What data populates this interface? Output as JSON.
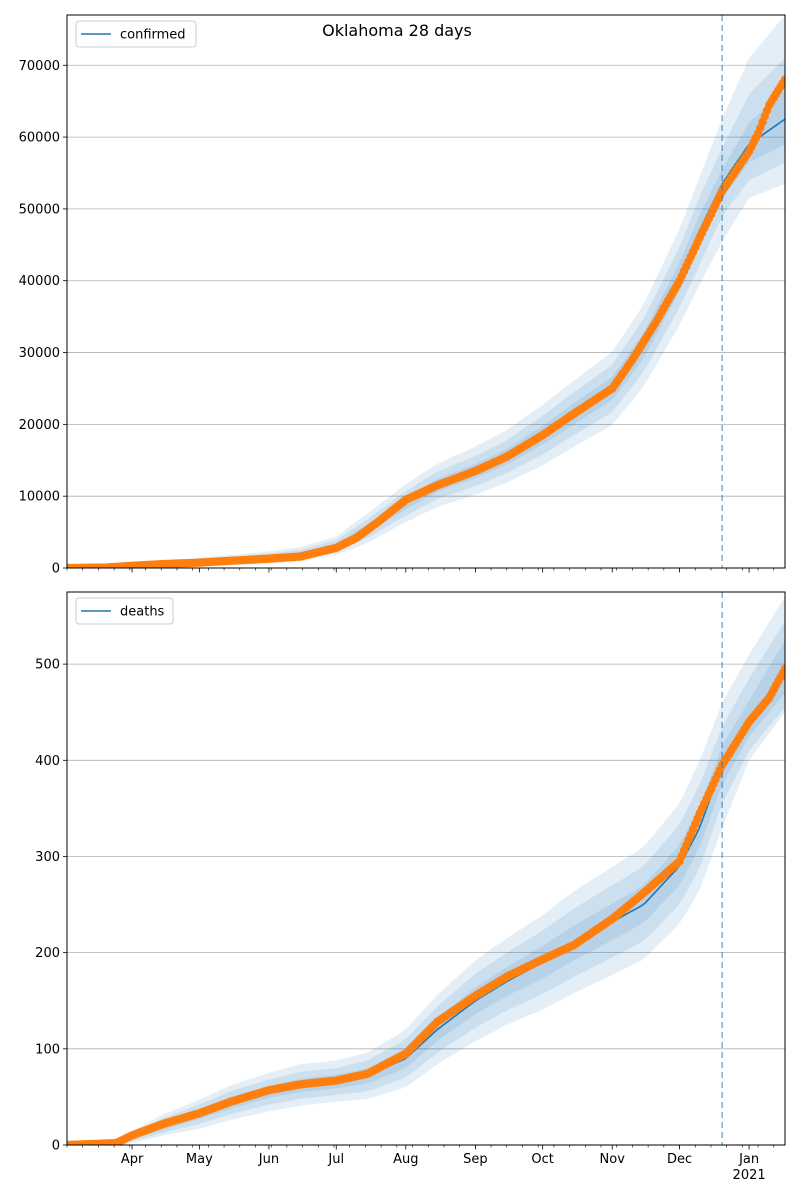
{
  "colors": {
    "model": "#1f77b4",
    "observed": "#ff7f0e",
    "band": "#1f77b4",
    "grid": "#b0b0b0",
    "forecast_line": "#1f77b4"
  },
  "chart_data": [
    {
      "type": "line",
      "title": "Oklahoma 28 days",
      "legend": {
        "entries": [
          "confirmed"
        ],
        "placement": "top-left"
      },
      "xlabel": "",
      "ylabel": "",
      "grid": "y",
      "x_range": [
        "2020-03-03",
        "2021-01-17"
      ],
      "ylim": [
        0,
        77000
      ],
      "yticks": [
        0,
        10000,
        20000,
        30000,
        40000,
        50000,
        60000,
        70000
      ],
      "ytick_labels": [
        "0",
        "10000",
        "20000",
        "30000",
        "40000",
        "50000",
        "60000",
        "70000"
      ],
      "forecast_start": "2020-12-20",
      "model": {
        "name": "confirmed",
        "x": [
          "2020-03-03",
          "2020-04-01",
          "2020-05-01",
          "2020-06-01",
          "2020-06-15",
          "2020-07-01",
          "2020-07-15",
          "2020-08-01",
          "2020-08-15",
          "2020-09-01",
          "2020-09-15",
          "2020-10-01",
          "2020-10-15",
          "2020-11-01",
          "2020-11-15",
          "2020-12-01",
          "2020-12-10",
          "2020-12-20",
          "2021-01-01",
          "2021-01-17"
        ],
        "y": [
          0,
          200,
          800,
          1400,
          1800,
          3000,
          5500,
          9000,
          11500,
          13500,
          15500,
          18500,
          21500,
          25000,
          31000,
          40500,
          47000,
          53500,
          59000,
          62500
        ],
        "bands": [
          {
            "lower": [
              0,
              150,
              600,
              1100,
              1500,
              2600,
              4900,
              8200,
              10600,
              12500,
              14400,
              17200,
              20000,
              23400,
              29200,
              38500,
              44800,
              51500,
              56500,
              59000
            ],
            "upper": [
              0,
              250,
              1000,
              1700,
              2100,
              3400,
              6100,
              9800,
              12400,
              14500,
              16600,
              19800,
              23000,
              26600,
              32800,
              42500,
              49200,
              55500,
              62000,
              66500
            ]
          },
          {
            "lower": [
              0,
              100,
              450,
              850,
              1200,
              2200,
              4200,
              7300,
              9600,
              11400,
              13200,
              15800,
              18500,
              21700,
              27300,
              36300,
              42300,
              49000,
              54000,
              56500
            ],
            "upper": [
              0,
              300,
              1200,
              2000,
              2500,
              3900,
              6800,
              10700,
              13400,
              15600,
              17800,
              21200,
              24500,
              28300,
              34700,
              44700,
              51700,
              58500,
              66000,
              71000
            ]
          },
          {
            "lower": [
              0,
              60,
              300,
              600,
              900,
              1800,
              3500,
              6400,
              8500,
              10200,
              11900,
              14300,
              16900,
              19900,
              25300,
              33800,
              39500,
              45500,
              51500,
              53500
            ],
            "upper": [
              0,
              350,
              1400,
              2300,
              2900,
              4400,
              7600,
              11700,
              14500,
              16900,
              19200,
              22700,
              26100,
              30100,
              36700,
              47200,
              54500,
              62500,
              71000,
              77000
            ]
          }
        ]
      },
      "observed": {
        "x": [
          "2020-03-03",
          "2020-03-20",
          "2020-04-01",
          "2020-04-15",
          "2020-05-01",
          "2020-05-15",
          "2020-06-01",
          "2020-06-15",
          "2020-07-01",
          "2020-07-10",
          "2020-07-20",
          "2020-08-01",
          "2020-08-15",
          "2020-09-01",
          "2020-09-15",
          "2020-10-01",
          "2020-10-15",
          "2020-11-01",
          "2020-11-10",
          "2020-11-20",
          "2020-12-01",
          "2020-12-10",
          "2020-12-20",
          "2021-01-01",
          "2021-01-05",
          "2021-01-10",
          "2021-01-17"
        ],
        "y": [
          0,
          60,
          300,
          550,
          750,
          1000,
          1300,
          1600,
          2800,
          4200,
          6500,
          9500,
          11500,
          13500,
          15500,
          18500,
          21500,
          25000,
          29000,
          34000,
          40000,
          46000,
          52500,
          58000,
          60500,
          64500,
          68000
        ]
      }
    },
    {
      "type": "line",
      "title": "",
      "legend": {
        "entries": [
          "deaths"
        ],
        "placement": "top-left"
      },
      "xlabel": "",
      "ylabel": "",
      "grid": "y",
      "x_range": [
        "2020-03-03",
        "2021-01-17"
      ],
      "ylim": [
        0,
        575
      ],
      "yticks": [
        0,
        100,
        200,
        300,
        400,
        500
      ],
      "ytick_labels": [
        "0",
        "100",
        "200",
        "300",
        "400",
        "500"
      ],
      "xticks": [
        "2020-04-01",
        "2020-05-01",
        "2020-06-01",
        "2020-07-01",
        "2020-08-01",
        "2020-09-01",
        "2020-10-01",
        "2020-11-01",
        "2020-12-01",
        "2021-01-01"
      ],
      "xtick_labels": [
        "Apr",
        "May",
        "Jun",
        "Jul",
        "Aug",
        "Sep",
        "Oct",
        "Nov",
        "Dec",
        "Jan"
      ],
      "xtick_sublabel": "2021",
      "forecast_start": "2020-12-20",
      "model": {
        "name": "deaths",
        "x": [
          "2020-03-03",
          "2020-03-25",
          "2020-04-01",
          "2020-04-15",
          "2020-05-01",
          "2020-05-15",
          "2020-06-01",
          "2020-06-15",
          "2020-07-01",
          "2020-07-15",
          "2020-08-01",
          "2020-08-15",
          "2020-09-01",
          "2020-09-15",
          "2020-10-01",
          "2020-10-15",
          "2020-11-01",
          "2020-11-15",
          "2020-12-01",
          "2020-12-10",
          "2020-12-20",
          "2021-01-01",
          "2021-01-17"
        ],
        "y": [
          0,
          2,
          8,
          20,
          32,
          44,
          55,
          62,
          66,
          72,
          90,
          120,
          150,
          170,
          190,
          210,
          232,
          250,
          290,
          330,
          395,
          440,
          495
        ],
        "bands": [
          {
            "lower": [
              0,
              1,
              6,
              16,
              27,
              38,
              49,
              55,
              59,
              64,
              80,
              108,
              136,
              155,
              173,
              192,
              213,
              231,
              270,
              310,
              375,
              425,
              470
            ],
            "upper": [
              0,
              3,
              10,
              24,
              37,
              50,
              61,
              69,
              73,
              80,
              100,
              132,
              164,
              185,
              207,
              228,
              251,
              270,
              312,
              352,
              415,
              462,
              525
            ]
          },
          {
            "lower": [
              0,
              1,
              4,
              13,
              22,
              32,
              42,
              48,
              52,
              56,
              70,
              96,
              122,
              140,
              157,
              175,
              195,
              212,
              250,
              288,
              355,
              410,
              455
            ],
            "upper": [
              0,
              4,
              12,
              28,
              42,
              56,
              68,
              76,
              80,
              88,
              110,
              144,
              178,
              200,
              223,
              246,
              270,
              290,
              333,
              375,
              435,
              485,
              545
            ]
          },
          {
            "lower": [
              0,
              0,
              2,
              10,
              17,
              26,
              35,
              41,
              45,
              48,
              60,
              84,
              108,
              125,
              141,
              158,
              177,
              193,
              230,
              265,
              330,
              400,
              450
            ],
            "upper": [
              0,
              5,
              14,
              32,
              47,
              62,
              75,
              84,
              88,
              96,
              120,
              156,
              192,
              215,
              239,
              264,
              289,
              310,
              355,
              400,
              460,
              510,
              570
            ]
          }
        ]
      },
      "observed": {
        "x": [
          "2020-03-03",
          "2020-03-25",
          "2020-04-01",
          "2020-04-15",
          "2020-05-01",
          "2020-05-15",
          "2020-06-01",
          "2020-06-15",
          "2020-07-01",
          "2020-07-15",
          "2020-08-01",
          "2020-08-15",
          "2020-09-01",
          "2020-09-15",
          "2020-10-01",
          "2020-10-15",
          "2020-11-01",
          "2020-11-15",
          "2020-12-01",
          "2020-12-10",
          "2020-12-20",
          "2021-01-01",
          "2021-01-10",
          "2021-01-17"
        ],
        "y": [
          0,
          2,
          10,
          22,
          33,
          45,
          57,
          63,
          67,
          74,
          95,
          128,
          155,
          175,
          193,
          208,
          235,
          262,
          295,
          345,
          395,
          440,
          465,
          495
        ]
      }
    }
  ]
}
